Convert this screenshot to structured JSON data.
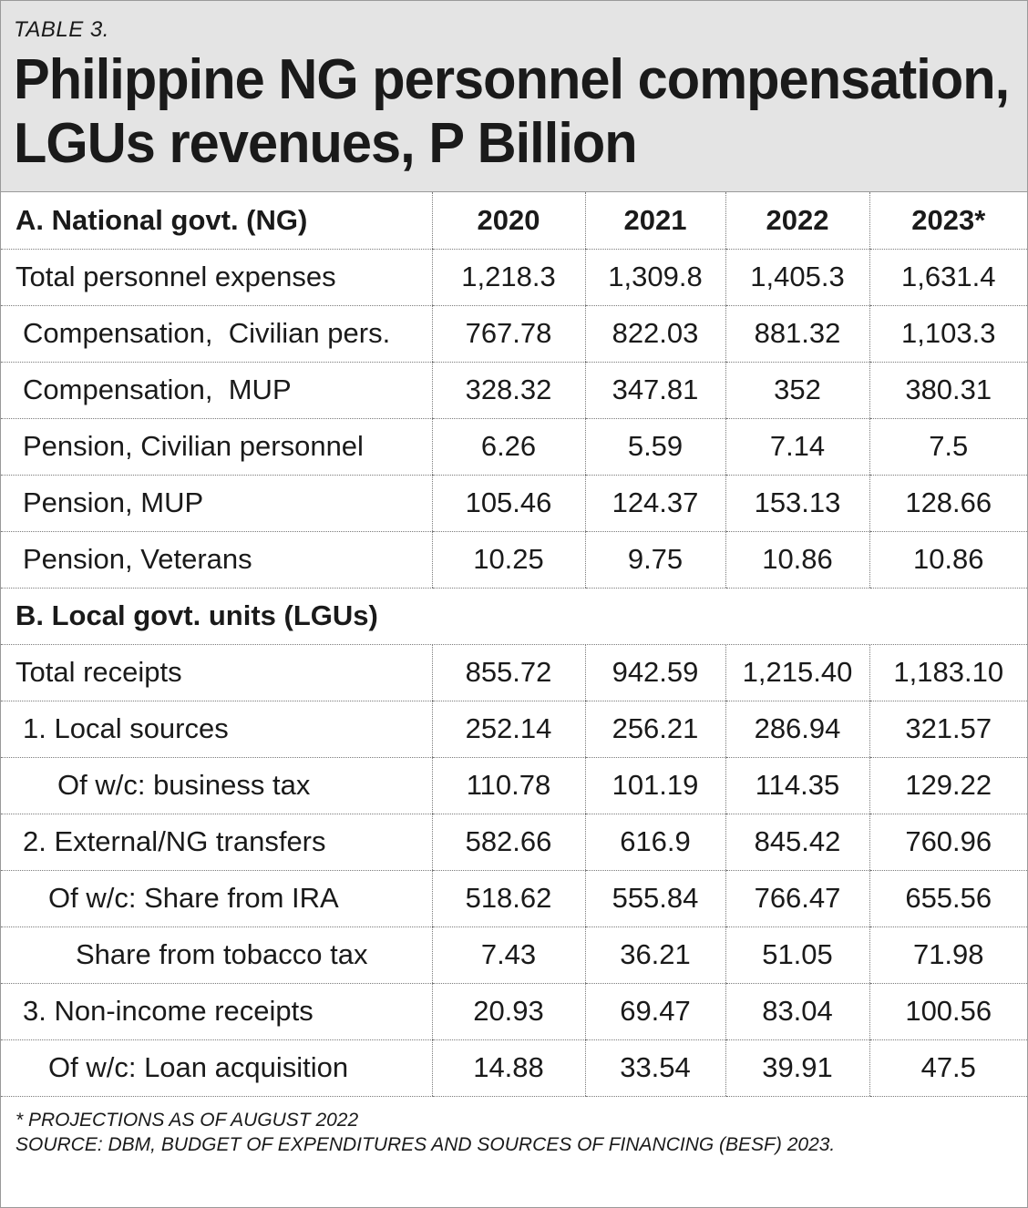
{
  "header": {
    "table_number": "TABLE 3.",
    "title_line1": "Philippine NG personnel compensation,",
    "title_line2": "LGUs revenues, P Billion"
  },
  "columns": [
    "A. National govt. (NG)",
    "2020",
    "2021",
    "2022",
    "2023*"
  ],
  "section_a_rows": [
    {
      "label": "Total personnel expenses",
      "values": [
        "1,218.3",
        "1,309.8",
        "1,405.3",
        "1,631.4"
      ]
    },
    {
      "label": "Compensation,  Civilian pers.",
      "values": [
        "767.78",
        "822.03",
        "881.32",
        "1,103.3"
      ]
    },
    {
      "label": "Compensation,  MUP",
      "values": [
        "328.32",
        "347.81",
        "352",
        "380.31"
      ]
    },
    {
      "label": "Pension, Civilian personnel",
      "values": [
        "6.26",
        "5.59",
        "7.14",
        "7.5"
      ]
    },
    {
      "label": "Pension, MUP",
      "values": [
        "105.46",
        "124.37",
        "153.13",
        "128.66"
      ]
    },
    {
      "label": "Pension, Veterans",
      "values": [
        "10.25",
        "9.75",
        "10.86",
        "10.86"
      ]
    }
  ],
  "section_b_title": "B. Local govt. units (LGUs)",
  "section_b_rows": [
    {
      "label": "Total receipts",
      "values": [
        "855.72",
        "942.59",
        "1,215.40",
        "1,183.10"
      ]
    },
    {
      "label": "1. Local sources",
      "values": [
        "252.14",
        "256.21",
        "286.94",
        "321.57"
      ]
    },
    {
      "label": "Of w/c: business tax",
      "values": [
        "110.78",
        "101.19",
        "114.35",
        "129.22"
      ]
    },
    {
      "label": "2. External/NG transfers",
      "values": [
        "582.66",
        "616.9",
        "845.42",
        "760.96"
      ]
    },
    {
      "label": "Of w/c: Share from IRA",
      "values": [
        "518.62",
        "555.84",
        "766.47",
        "655.56"
      ]
    },
    {
      "label": "Share from tobacco tax",
      "values": [
        "7.43",
        "36.21",
        "51.05",
        "71.98"
      ]
    },
    {
      "label": "3. Non-income receipts",
      "values": [
        "20.93",
        "69.47",
        "83.04",
        "100.56"
      ]
    },
    {
      "label": "Of w/c: Loan acquisition",
      "values": [
        "14.88",
        "33.54",
        "39.91",
        "47.5"
      ]
    }
  ],
  "footer": {
    "note": "* PROJECTIONS AS OF AUGUST 2022",
    "source": "SOURCE: DBM, BUDGET OF EXPENDITURES AND SOURCES OF FINANCING (BESF) 2023."
  }
}
